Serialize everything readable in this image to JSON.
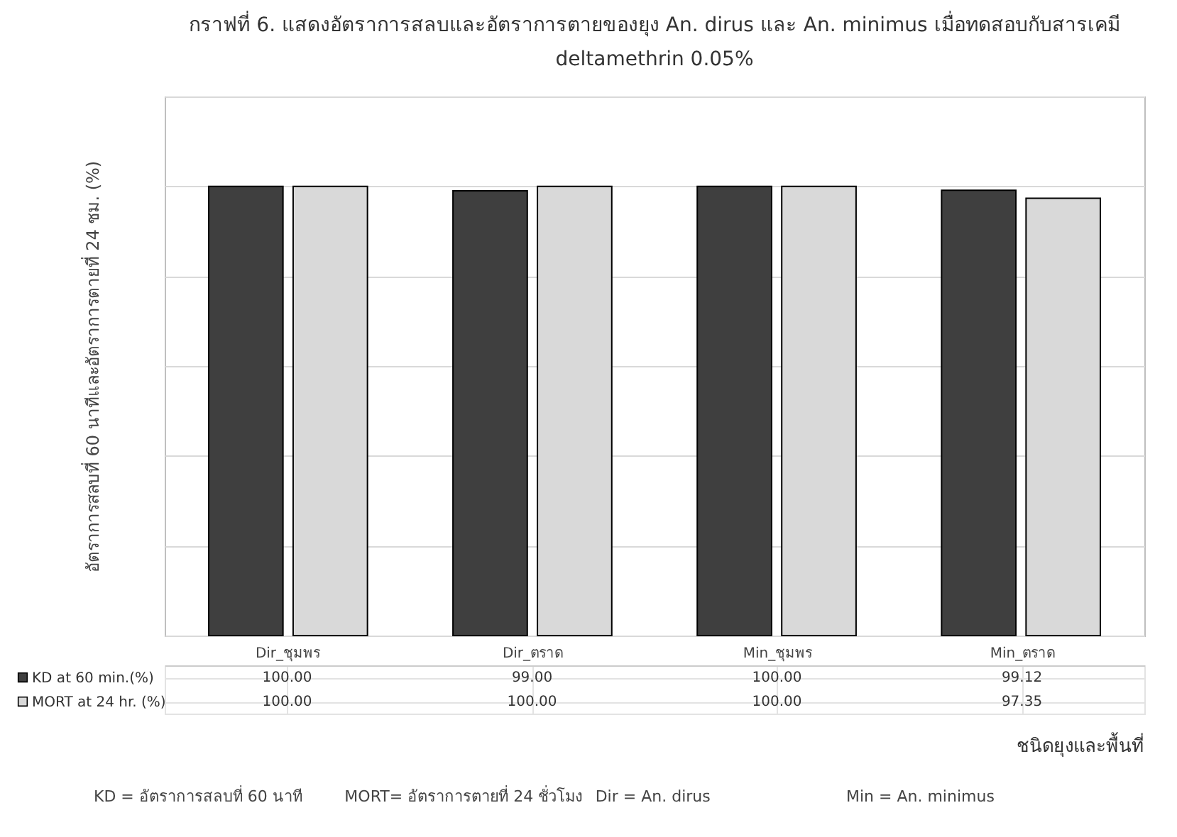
{
  "chart_data": {
    "type": "bar",
    "title": "กราฟที่ 6. แสดงอัตราการสลบและอัตราการตายของยุง An. dirus และ An. minimus เมื่อทดสอบกับสารเคมี deltamethrin 0.05%",
    "ylabel": "อัตราการสลบที่ 60 นาทีและอัตราการตายที่ 24 ชม. (%)",
    "xlabel": "ชนิดยุงและพื้นที่",
    "categories": [
      "Dir_ชุมพร",
      "Dir_ตราด",
      "Min_ชุมพร",
      "Min_ตราด"
    ],
    "series": [
      {
        "name": "KD at 60 min.(%)",
        "color": "#3f3f3f",
        "values": [
          100.0,
          99.0,
          100.0,
          99.12
        ],
        "value_labels": [
          "100.00",
          "99.00",
          "100.00",
          "99.12"
        ]
      },
      {
        "name": "MORT at 24 hr. (%)",
        "color": "#d9d9d9",
        "values": [
          100.0,
          100.0,
          100.0,
          97.35
        ],
        "value_labels": [
          "100.00",
          "100.00",
          "100.00",
          "97.35"
        ]
      }
    ],
    "ylim": [
      0,
      120
    ],
    "yticks": [
      {
        "value": 0,
        "label": null
      },
      {
        "value": 20,
        "label": null
      },
      {
        "value": 40,
        "label": null
      },
      {
        "value": 60,
        "label": null
      },
      {
        "value": 80,
        "label": null
      },
      {
        "value": 100,
        "label": null
      },
      {
        "value": 120,
        "label": null
      }
    ],
    "grid": "y",
    "legend": "bottom",
    "annotations": [
      "KD = อัตราการสลบที่ 60 นาที",
      "MORT= อัตราการตายที่ 24 ชั่วโมง",
      "Dir = An. dirus",
      "Min = An. minimus"
    ]
  }
}
